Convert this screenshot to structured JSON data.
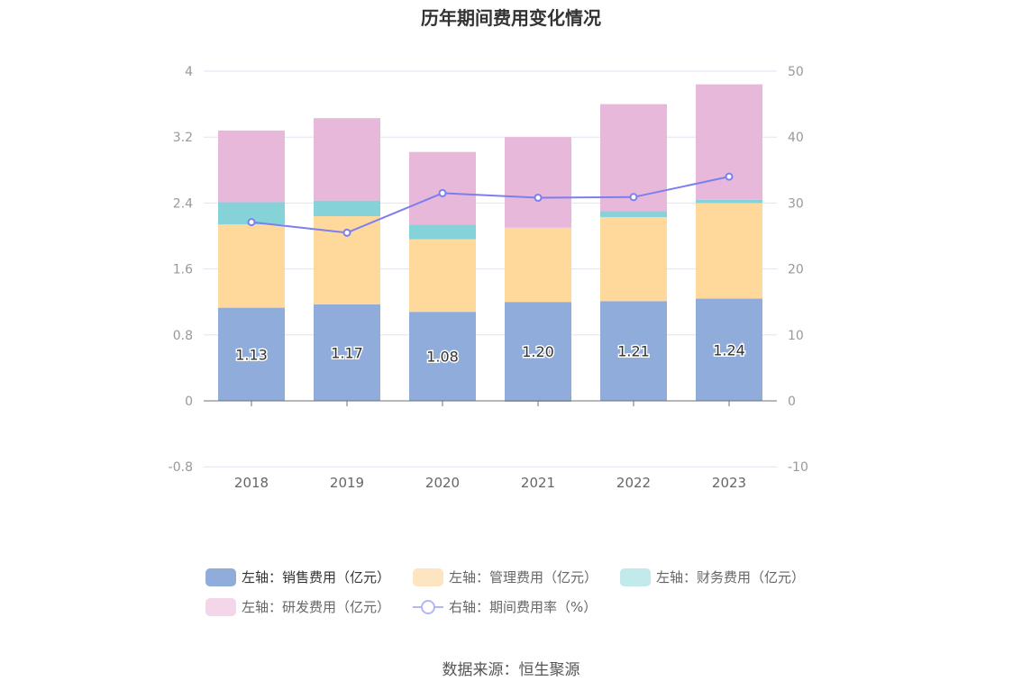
{
  "chart_title": "历年期间费用变化情况",
  "source_text": "数据来源：恒生聚源",
  "chart_data": {
    "type": "bar",
    "title": "历年期间费用变化情况",
    "stacked": true,
    "categories": [
      "2018",
      "2019",
      "2020",
      "2021",
      "2022",
      "2023"
    ],
    "left_axis": {
      "min": -0.8,
      "max": 4,
      "ticks": [
        "-0.8",
        "0",
        "0.8",
        "1.6",
        "2.4",
        "3.2",
        "4"
      ]
    },
    "right_axis": {
      "min": -10,
      "max": 50,
      "ticks": [
        "-10",
        "0",
        "10",
        "20",
        "30",
        "40",
        "50"
      ]
    },
    "grid": true,
    "legend_position": "bottom",
    "series": [
      {
        "name": "左轴：销售费用（亿元）",
        "axis": "left",
        "type": "bar",
        "color": "#8facdb",
        "values": [
          1.13,
          1.17,
          1.08,
          1.2,
          1.21,
          1.24
        ],
        "labels": [
          "1.13",
          "1.17",
          "1.08",
          "1.20",
          "1.21",
          "1.24"
        ]
      },
      {
        "name": "左轴：管理费用（亿元）",
        "axis": "left",
        "type": "bar",
        "color": "#ffd99b",
        "values": [
          1.01,
          1.07,
          0.88,
          0.9,
          1.02,
          1.16
        ]
      },
      {
        "name": "左轴：财务费用（亿元）",
        "axis": "left",
        "type": "bar",
        "color": "#86d2d9",
        "values": [
          0.27,
          0.19,
          0.18,
          -0.01,
          0.07,
          0.04
        ]
      },
      {
        "name": "左轴：研发费用（亿元）",
        "axis": "left",
        "type": "bar",
        "color": "#e8b8da",
        "values": [
          0.87,
          1.0,
          0.88,
          1.1,
          1.3,
          1.4
        ]
      },
      {
        "name": "右轴：期间费用率（%）",
        "axis": "right",
        "type": "line",
        "color": "#7b7ff0",
        "values": [
          27.1,
          25.5,
          31.5,
          30.8,
          30.9,
          34.0
        ]
      }
    ]
  }
}
